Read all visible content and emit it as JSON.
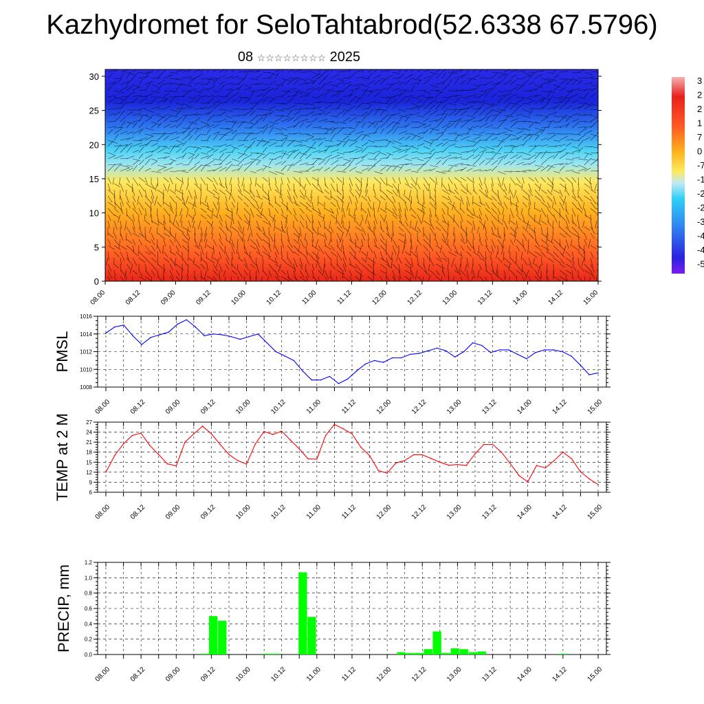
{
  "title": "Kazhydromet for SeloTahtabrod(52.6338 67.5796)",
  "date_day": "08",
  "date_month_glyphs": "☆☆☆☆☆☆☆☆",
  "date_year": "2025",
  "time_ticks": [
    "08.00",
    "08.12",
    "09.00",
    "09.12",
    "10.00",
    "10.12",
    "11.00",
    "11.12",
    "12.00",
    "12.12",
    "13.00",
    "13.12",
    "14.00",
    "14.12",
    "15.00"
  ],
  "chart_data": [
    {
      "id": "profile",
      "type": "heatmap",
      "title": "",
      "ylim": [
        0,
        31
      ],
      "yticks": [
        "0",
        "5",
        "10",
        "15",
        "20",
        "25",
        "30"
      ],
      "colorbar_labels": [
        "3",
        "2",
        "2",
        "1",
        "7",
        "0",
        "-7",
        "-1",
        "-2",
        "-2",
        "-3",
        "-4",
        "-4",
        "-5"
      ],
      "colors": [
        "#ff5a24",
        "#ffb21e",
        "#ffe95f",
        "#4cd2f5",
        "#2f7df1",
        "#1a24d9"
      ]
    },
    {
      "id": "pmsl",
      "type": "line",
      "ylabel": "PMSL",
      "ylim": [
        1008,
        1016
      ],
      "yticks": [
        "1008",
        "1010",
        "1012",
        "1014",
        "1016"
      ],
      "color": "#0000ff",
      "values": [
        1014.1,
        1014.8,
        1015.0,
        1013.8,
        1012.8,
        1013.6,
        1013.9,
        1014.2,
        1015.1,
        1015.6,
        1014.8,
        1013.8,
        1014.0,
        1013.9,
        1013.7,
        1013.4,
        1013.7,
        1014.0,
        1013.0,
        1012.0,
        1011.5,
        1011.0,
        1009.8,
        1008.8,
        1008.8,
        1009.2,
        1008.4,
        1008.9,
        1009.8,
        1010.6,
        1011.0,
        1010.8,
        1011.3,
        1011.3,
        1011.7,
        1011.8,
        1012.1,
        1012.4,
        1012.1,
        1011.4,
        1012.0,
        1013.0,
        1012.7,
        1011.9,
        1012.2,
        1012.2,
        1011.7,
        1011.2,
        1011.9,
        1012.2,
        1012.2,
        1012.0,
        1011.5,
        1010.5,
        1009.4,
        1009.6
      ]
    },
    {
      "id": "temp",
      "type": "line",
      "ylabel": "TEMP at 2 M",
      "ylim": [
        6,
        27
      ],
      "yticks": [
        "6",
        "9",
        "12",
        "15",
        "18",
        "21",
        "24",
        "27"
      ],
      "color": "#ff0000",
      "values": [
        12.0,
        17.0,
        20.5,
        23.0,
        23.7,
        20.0,
        17.3,
        14.5,
        13.9,
        21.0,
        23.5,
        25.8,
        23.5,
        20.3,
        17.3,
        15.5,
        14.4,
        20.5,
        24.2,
        23.3,
        24.3,
        21.6,
        19.0,
        16.0,
        15.9,
        23.0,
        26.3,
        25.0,
        23.5,
        19.5,
        17.0,
        12.5,
        11.7,
        14.8,
        15.5,
        17.2,
        17.2,
        16.1,
        15.0,
        14.1,
        14.3,
        14.0,
        17.5,
        20.3,
        20.3,
        18.0,
        14.6,
        11.0,
        9.1,
        14.0,
        13.3,
        15.5,
        18.0,
        16.0,
        12.1,
        10.0,
        8.3
      ]
    },
    {
      "id": "precip",
      "type": "bar",
      "ylabel": "PRECIP, mm",
      "ylim": [
        0,
        1.2
      ],
      "yticks": [
        "0.0",
        "0.2",
        "0.4",
        "0.6",
        "0.8",
        "1.0",
        "1.2"
      ],
      "color": "#00ff00",
      "values": [
        0,
        0,
        0,
        0,
        0,
        0,
        0,
        0,
        0,
        0,
        0,
        0.01,
        0.5,
        0.44,
        0,
        0,
        0,
        0,
        0.01,
        0.01,
        0,
        0,
        1.07,
        0.49,
        0,
        0,
        0,
        0,
        0,
        0,
        0,
        0,
        0,
        0.03,
        0.02,
        0.02,
        0.07,
        0.3,
        0.02,
        0.08,
        0.07,
        0.03,
        0.04,
        0,
        0,
        0,
        0,
        0,
        0,
        0,
        0,
        0.01,
        0,
        0,
        0,
        0
      ]
    }
  ]
}
